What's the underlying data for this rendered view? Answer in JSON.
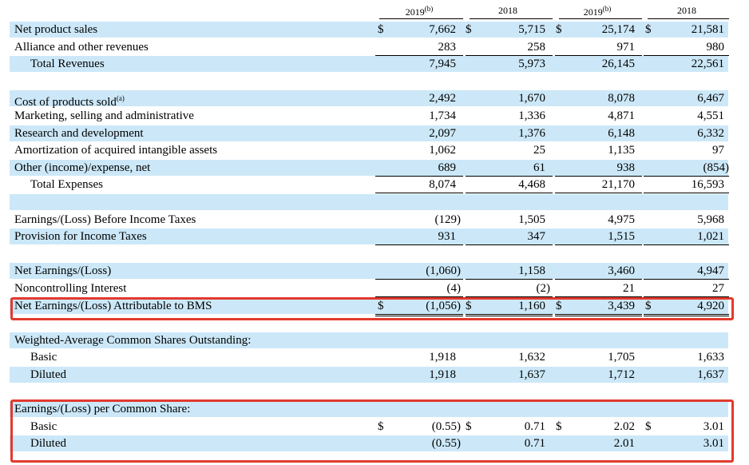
{
  "header": {
    "columns": [
      {
        "year": "2019",
        "note": "(b)"
      },
      {
        "year": "2018"
      },
      {
        "year": "2019",
        "note": "(b)"
      },
      {
        "year": "2018"
      }
    ]
  },
  "currency": "$",
  "rows": [
    {
      "label": "Net product sales",
      "values": [
        "7,662",
        "5,715",
        "25,174",
        "21,581"
      ],
      "currency": true
    },
    {
      "label": "Alliance and other revenues",
      "values": [
        "283",
        "258",
        "971",
        "980"
      ]
    },
    {
      "label": "Total Revenues",
      "values": [
        "7,945",
        "5,973",
        "26,145",
        "22,561"
      ],
      "indent": true
    },
    {},
    {
      "label": "Cost of products sold",
      "note": "(a)",
      "values": [
        "2,492",
        "1,670",
        "8,078",
        "6,467"
      ]
    },
    {
      "label": "Marketing, selling and administrative",
      "values": [
        "1,734",
        "1,336",
        "4,871",
        "4,551"
      ]
    },
    {
      "label": "Research and development",
      "values": [
        "2,097",
        "1,376",
        "6,148",
        "6,332"
      ]
    },
    {
      "label": "Amortization of acquired intangible assets",
      "values": [
        "1,062",
        "25",
        "1,135",
        "97"
      ]
    },
    {
      "label": "Other (income)/expense, net",
      "values": [
        "689",
        "61",
        "938",
        "(854)"
      ]
    },
    {
      "label": "Total Expenses",
      "values": [
        "8,074",
        "4,468",
        "21,170",
        "16,593"
      ],
      "indent": true
    },
    {},
    {
      "label": "Earnings/(Loss) Before Income Taxes",
      "values": [
        "(129)",
        "1,505",
        "4,975",
        "5,968"
      ]
    },
    {
      "label": "Provision for Income Taxes",
      "values": [
        "931",
        "347",
        "1,515",
        "1,021"
      ]
    },
    {},
    {
      "label": "Net Earnings/(Loss)",
      "values": [
        "(1,060)",
        "1,158",
        "3,460",
        "4,947"
      ]
    },
    {
      "label": "Noncontrolling Interest",
      "values": [
        "(4)",
        "(2)",
        "21",
        "27"
      ]
    },
    {
      "label": "Net Earnings/(Loss) Attributable to BMS",
      "values": [
        "(1,056)",
        "1,160",
        "3,439",
        "4,920"
      ],
      "currency": true
    },
    {},
    {
      "label": "Weighted-Average Common Shares Outstanding:"
    },
    {
      "label": "Basic",
      "values": [
        "1,918",
        "1,632",
        "1,705",
        "1,633"
      ],
      "indent": true
    },
    {
      "label": "Diluted",
      "values": [
        "1,918",
        "1,637",
        "1,712",
        "1,637"
      ],
      "indent": true
    },
    {},
    {
      "label": "Earnings/(Loss) per Common Share:"
    },
    {
      "label": "Basic",
      "values": [
        "(0.55)",
        "0.71",
        "2.02",
        "3.01"
      ],
      "indent": true,
      "currency": true
    },
    {
      "label": "Diluted",
      "values": [
        "(0.55)",
        "0.71",
        "2.01",
        "3.01"
      ],
      "indent": true
    }
  ]
}
